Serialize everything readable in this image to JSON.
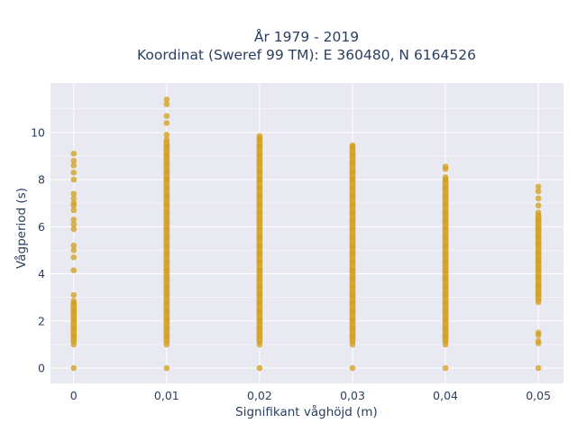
{
  "chart_data": {
    "type": "scatter",
    "title_line1": "År 1979 - 2019",
    "title_line2": "Koordinat (Sweref 99 TM): E 360480, N 6164526",
    "xlabel": "Signifikant våghöjd (m)",
    "ylabel": "Vågperiod (s)",
    "x_ticks": [
      "0",
      "0,01",
      "0,02",
      "0,03",
      "0,04",
      "0,05"
    ],
    "y_ticks": [
      "0",
      "2",
      "4",
      "6",
      "8",
      "10"
    ],
    "xlim": [
      -0.0025,
      0.0527
    ],
    "ylim": [
      -0.65,
      12.1
    ],
    "grid": true,
    "marker_color": "#D4A020",
    "background_color": "#E9E9F1",
    "columns": [
      {
        "x": 0.0,
        "calm": 0,
        "band": [
          1.0,
          2.85
        ],
        "outliers": [
          3.1,
          4.15,
          4.7,
          5.0,
          5.2,
          5.9,
          6.1,
          6.3,
          6.7,
          6.9,
          7.0,
          7.2,
          7.4,
          8.0,
          8.3,
          8.6,
          8.8,
          9.1
        ]
      },
      {
        "x": 0.01,
        "calm": 0,
        "band": [
          1.0,
          9.7
        ],
        "outliers": [
          9.9,
          10.4,
          10.7,
          11.2,
          11.4
        ]
      },
      {
        "x": 0.02,
        "calm": 0,
        "band": [
          1.0,
          9.85
        ],
        "outliers": []
      },
      {
        "x": 0.03,
        "calm": 0,
        "band": [
          1.0,
          9.45
        ],
        "outliers": []
      },
      {
        "x": 0.04,
        "calm": 0,
        "band": [
          1.0,
          8.1
        ],
        "outliers": [
          8.45,
          8.55
        ]
      },
      {
        "x": 0.05,
        "calm": 0,
        "band": [
          2.8,
          6.6
        ],
        "outliers": [
          1.05,
          1.15,
          1.4,
          1.5,
          6.9,
          7.2,
          7.5,
          7.7
        ]
      }
    ]
  }
}
